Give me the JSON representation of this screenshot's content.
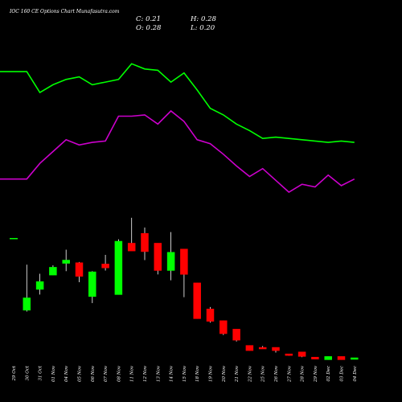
{
  "title": "IOC 160 CE Options Chart Munafasutra.com",
  "ohlc_readout": {
    "close": "C: 0.21",
    "high": "H: 0.28",
    "open": "O: 0.28",
    "low": "L: 0.20"
  },
  "colors": {
    "background": "#000000",
    "up": "#00ff00",
    "down": "#ff0000",
    "upper_line": "#00ff00",
    "lower_line": "#cc00cc",
    "text": "#ffffff",
    "wick": "#ffffff"
  },
  "chart_data": {
    "type": "candlestick",
    "title": "IOC 160 CE Options Chart Munafasutra.com",
    "dates": [
      "29 Oct",
      "30 Oct",
      "31 Oct",
      "01 Nov",
      "04 Nov",
      "05 Nov",
      "06 Nov",
      "07 Nov",
      "08 Nov",
      "11 Nov",
      "12 Nov",
      "13 Nov",
      "14 Nov",
      "15 Nov",
      "18 Nov",
      "19 Nov",
      "20 Nov",
      "21 Nov",
      "22 Nov",
      "25 Nov",
      "26 Nov",
      "27 Nov",
      "28 Nov",
      "29 Nov",
      "02 Dec",
      "03 Dec",
      "04 Dec"
    ],
    "candles": [
      {
        "open": 1.83,
        "high": 1.83,
        "low": 1.83,
        "close": 1.83
      },
      {
        "open": 0.73,
        "high": 1.43,
        "low": 0.71,
        "close": 0.92
      },
      {
        "open": 1.05,
        "high": 1.29,
        "low": 0.97,
        "close": 1.17
      },
      {
        "open": 1.27,
        "high": 1.42,
        "low": 1.27,
        "close": 1.39
      },
      {
        "open": 1.45,
        "high": 1.66,
        "low": 1.33,
        "close": 1.5
      },
      {
        "open": 1.46,
        "high": 1.47,
        "low": 1.16,
        "close": 1.25
      },
      {
        "open": 0.94,
        "high": 1.33,
        "low": 0.84,
        "close": 1.32
      },
      {
        "open": 1.44,
        "high": 1.58,
        "low": 1.34,
        "close": 1.38
      },
      {
        "open": 0.97,
        "high": 1.82,
        "low": 0.97,
        "close": 1.79
      },
      {
        "open": 1.76,
        "high": 2.15,
        "low": 1.65,
        "close": 1.64
      },
      {
        "open": 1.91,
        "high": 2.0,
        "low": 1.5,
        "close": 1.63
      },
      {
        "open": 1.76,
        "high": 1.76,
        "low": 1.28,
        "close": 1.34
      },
      {
        "open": 1.34,
        "high": 1.93,
        "low": 1.19,
        "close": 1.62
      },
      {
        "open": 1.67,
        "high": 1.67,
        "low": 0.93,
        "close": 1.28
      },
      {
        "open": 1.15,
        "high": 1.15,
        "low": 0.6,
        "close": 0.6
      },
      {
        "open": 0.75,
        "high": 0.78,
        "low": 0.54,
        "close": 0.56
      },
      {
        "open": 0.57,
        "high": 0.57,
        "low": 0.35,
        "close": 0.37
      },
      {
        "open": 0.44,
        "high": 0.44,
        "low": 0.25,
        "close": 0.27
      },
      {
        "open": 0.19,
        "high": 0.19,
        "low": 0.11,
        "close": 0.11
      },
      {
        "open": 0.16,
        "high": 0.18,
        "low": 0.15,
        "close": 0.15
      },
      {
        "open": 0.16,
        "high": 0.16,
        "low": 0.08,
        "close": 0.11
      },
      {
        "open": 0.06,
        "high": 0.06,
        "low": 0.03,
        "close": 0.04
      },
      {
        "open": 0.09,
        "high": 0.09,
        "low": 0.01,
        "close": 0.02
      },
      {
        "open": 0.01,
        "high": 0.01,
        "low": -0.02,
        "close": -0.02
      },
      {
        "open": -0.03,
        "high": 0.02,
        "low": -0.03,
        "close": 0.02
      },
      {
        "open": 0.02,
        "high": 0.02,
        "low": -0.03,
        "close": -0.03
      },
      {
        "open": 0.0,
        "high": 0.0,
        "low": 0.0,
        "close": 0.0
      }
    ],
    "upper_band": [
      2.38,
      2.38,
      2.22,
      2.28,
      2.32,
      2.34,
      2.28,
      2.3,
      2.32,
      2.44,
      2.4,
      2.39,
      2.3,
      2.37,
      2.24,
      2.1,
      2.05,
      1.98,
      1.93,
      1.87,
      1.88,
      1.87,
      1.86,
      1.85,
      1.84,
      1.85,
      1.84
    ],
    "lower_band": [
      1.56,
      1.56,
      1.68,
      1.77,
      1.86,
      1.82,
      1.84,
      1.85,
      2.04,
      2.04,
      2.05,
      1.98,
      2.08,
      2.0,
      1.86,
      1.83,
      1.75,
      1.66,
      1.58,
      1.64,
      1.55,
      1.46,
      1.52,
      1.5,
      1.59,
      1.51,
      1.56
    ]
  }
}
